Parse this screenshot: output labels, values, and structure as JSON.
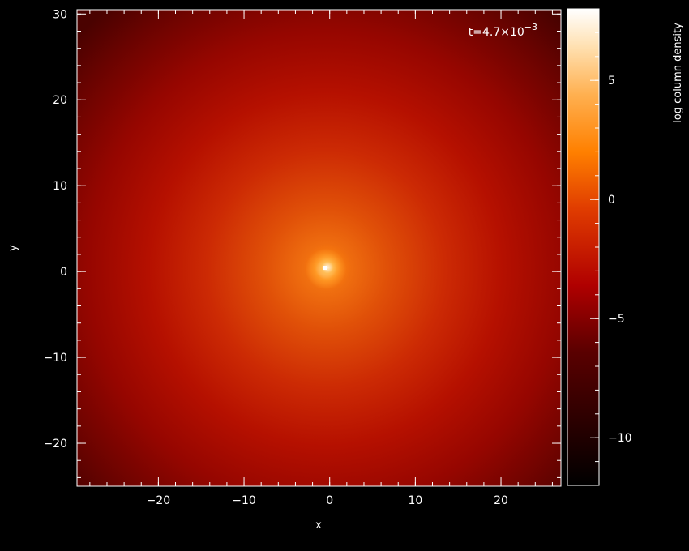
{
  "chart_data": {
    "type": "heatmap",
    "title": "",
    "xlabel": "x",
    "ylabel": "y",
    "xlim": [
      -29.5,
      27
    ],
    "ylim": [
      -25,
      30.5
    ],
    "x_ticks": [
      -20,
      -10,
      0,
      10,
      20
    ],
    "y_ticks": [
      -20,
      -10,
      0,
      10,
      20,
      30
    ],
    "x_minor_step": 2,
    "y_minor_step": 2,
    "x_tick_labels": [
      "−20",
      "−10",
      "0",
      "10",
      "20"
    ],
    "y_tick_labels": [
      "−20",
      "−10",
      "0",
      "10",
      "20",
      "30"
    ],
    "annotation": {
      "prefix": "t=4.7×10",
      "exponent": "−3",
      "position": "top-right"
    },
    "field": {
      "center": [
        -0.3,
        0.3
      ],
      "peak_value": 8,
      "edge_value": -7,
      "description_of_shape": "centrally concentrated bright core with diffuse halo"
    },
    "colorbar": {
      "label": "log column density",
      "range": [
        -12,
        8
      ],
      "ticks": [
        5,
        0,
        -5,
        -10
      ],
      "tick_labels": [
        "5",
        "0",
        "−5",
        "−10"
      ],
      "minor_step": 1,
      "colormap": "heat",
      "stops": [
        {
          "v": 0.0,
          "color": "#000000"
        },
        {
          "v": 0.28,
          "color": "#5a0000"
        },
        {
          "v": 0.42,
          "color": "#b00000"
        },
        {
          "v": 0.58,
          "color": "#e03c00"
        },
        {
          "v": 0.7,
          "color": "#ff8000"
        },
        {
          "v": 0.82,
          "color": "#ffb050"
        },
        {
          "v": 0.92,
          "color": "#ffe0b0"
        },
        {
          "v": 1.0,
          "color": "#ffffff"
        }
      ]
    },
    "grid": false,
    "legend": "none"
  },
  "colors": {
    "background": "#000000",
    "axis": "#ffffff"
  }
}
